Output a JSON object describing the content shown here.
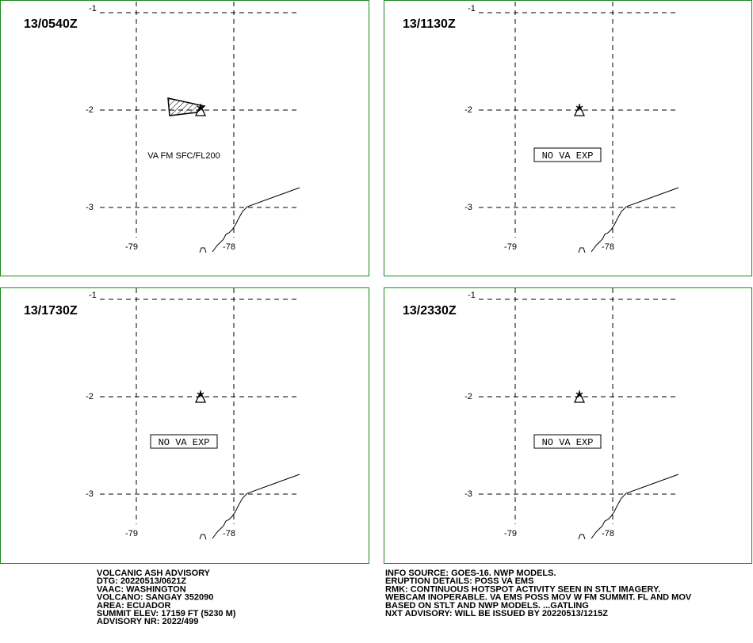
{
  "panels": [
    {
      "time": "13/0540Z",
      "annotation": "VA FM SFC/FL200"
    },
    {
      "time": "13/1130Z",
      "annotation": "NO VA EXP"
    },
    {
      "time": "13/1730Z",
      "annotation": "NO VA EXP"
    },
    {
      "time": "13/2330Z",
      "annotation": "NO VA EXP"
    }
  ],
  "lat_labels": [
    "-1",
    "-2",
    "-3"
  ],
  "lon_labels": [
    "-79",
    "-78"
  ],
  "footer": {
    "left": [
      "VOLCANIC ASH ADVISORY",
      "DTG: 20220513/0621Z",
      "VAAC: WASHINGTON",
      "VOLCANO: SANGAY 352090",
      "AREA: ECUADOR",
      "SUMMIT ELEV: 17159 FT (5230 M)",
      "ADVISORY NR: 2022/499"
    ],
    "right": [
      "INFO SOURCE: GOES-16. NWP MODELS.",
      "ERUPTION DETAILS: POSS VA EMS",
      "RMK: CONTINUOUS HOTSPOT ACTIVITY SEEN IN STLT IMAGERY.",
      "WEBCAM INOPERABLE. VA EMS POSS MOV W FM SUMMIT. FL AND MOV",
      "BASED ON STLT AND NWP MODELS. ...GATLING",
      "NXT ADVISORY: WILL BE ISSUED BY 20220513/1215Z"
    ]
  }
}
